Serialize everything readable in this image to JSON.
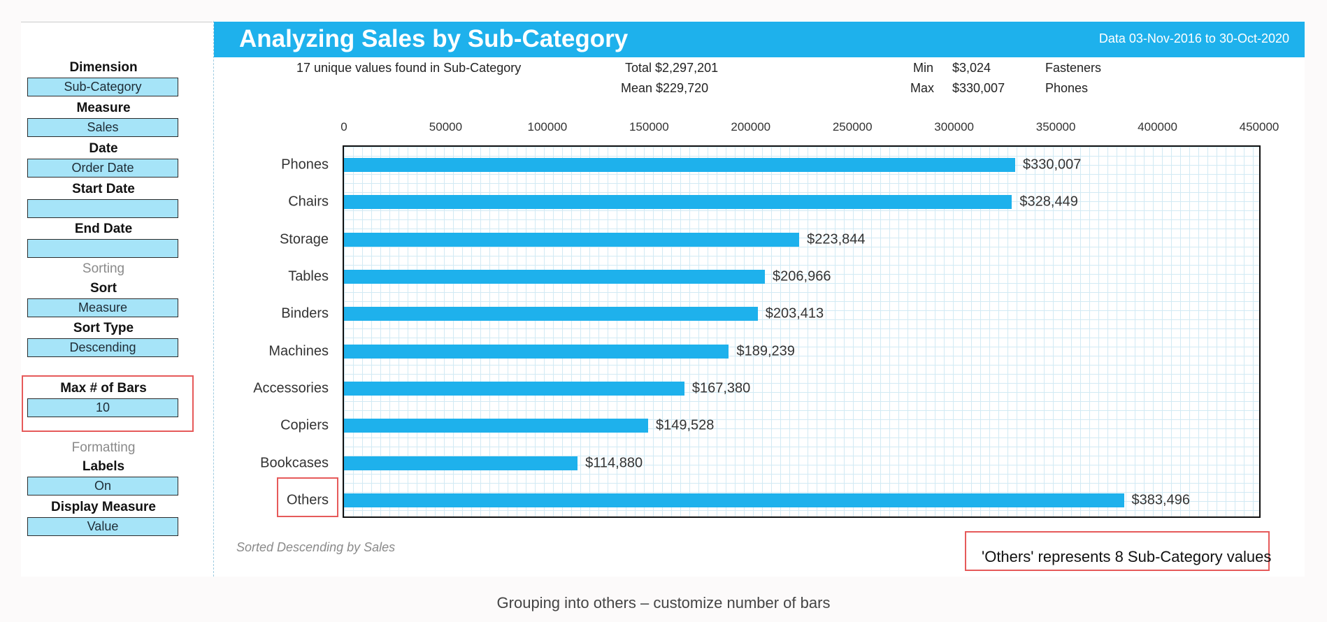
{
  "sidebar": {
    "dimension_label": "Dimension",
    "dimension_value": "Sub-Category",
    "measure_label": "Measure",
    "measure_value": "Sales",
    "date_label": "Date",
    "date_value": "Order Date",
    "start_date_label": "Start Date",
    "start_date_value": "",
    "end_date_label": "End Date",
    "end_date_value": "",
    "sorting_heading": "Sorting",
    "sort_label": "Sort",
    "sort_value": "Measure",
    "sort_type_label": "Sort Type",
    "sort_type_value": "Descending",
    "max_bars_label": "Max # of Bars",
    "max_bars_value": "10",
    "formatting_heading": "Formatting",
    "labels_label": "Labels",
    "labels_value": "On",
    "display_measure_label": "Display Measure",
    "display_measure_value": "Value"
  },
  "header": {
    "title": "Analyzing Sales by Sub-Category",
    "date_range": "Data 03-Nov-2016 to 30-Oct-2020"
  },
  "stats": {
    "unique_text": "17 unique values found in Sub-Category",
    "total": "Total $2,297,201",
    "mean": "Mean $229,720",
    "min_label": "Min",
    "min_value": "$3,024",
    "min_category": "Fasteners",
    "max_label": "Max",
    "max_value": "$330,007",
    "max_category": "Phones"
  },
  "chart_data": {
    "type": "bar",
    "orientation": "horizontal",
    "title": "Analyzing Sales by Sub-Category",
    "categories": [
      "Phones",
      "Chairs",
      "Storage",
      "Tables",
      "Binders",
      "Machines",
      "Accessories",
      "Copiers",
      "Bookcases",
      "Others"
    ],
    "values": [
      330007,
      328449,
      223844,
      206966,
      203413,
      189239,
      167380,
      149528,
      114880,
      383496
    ],
    "data_labels": [
      "$330,007",
      "$328,449",
      "$223,844",
      "$206,966",
      "$203,413",
      "$189,239",
      "$167,380",
      "$149,528",
      "$114,880",
      "$383,496"
    ],
    "xlim": [
      0,
      450000
    ],
    "x_ticks": [
      "0",
      "50000",
      "100000",
      "150000",
      "200000",
      "250000",
      "300000",
      "350000",
      "400000",
      "450000"
    ],
    "x_axis_position": "top",
    "grid": true,
    "bar_color": "#1eb1ec"
  },
  "footnote": "Sorted Descending by Sales",
  "others_note": "'Others' represents 8 Sub-Category values",
  "caption": "Grouping into others – customize number of bars"
}
